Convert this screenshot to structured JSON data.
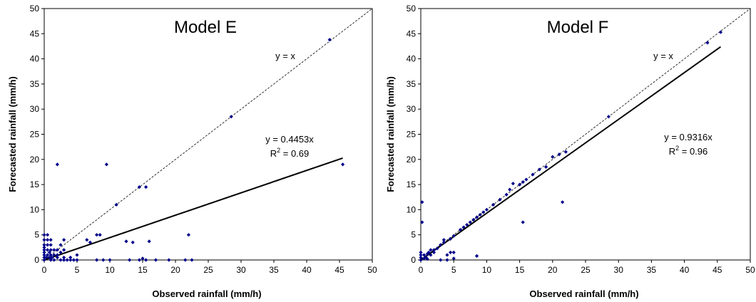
{
  "chart_data": [
    {
      "type": "scatter",
      "title": "Model E",
      "xlabel": "Observed rainfall (mm/h)",
      "ylabel": "Forecasted rainfall (mm/h)",
      "xlim": [
        0,
        50
      ],
      "ylim": [
        0,
        50
      ],
      "xticks": [
        0,
        5,
        10,
        15,
        20,
        25,
        30,
        35,
        40,
        45,
        50
      ],
      "yticks": [
        0,
        5,
        10,
        15,
        20,
        25,
        30,
        35,
        40,
        45,
        50
      ],
      "grid": false,
      "reference_line_label": "y = x",
      "fit_equation": "y = 0.4453x",
      "fit_r2_label": "R",
      "fit_r2_sup": "2",
      "fit_r2_value": " = 0.69",
      "fit_slope": 0.4453,
      "marker_color": "#00008b",
      "points": [
        [
          0,
          0
        ],
        [
          0,
          0.5
        ],
        [
          0,
          1
        ],
        [
          0,
          1.5
        ],
        [
          0,
          2
        ],
        [
          0,
          2.5
        ],
        [
          0,
          3
        ],
        [
          0,
          4
        ],
        [
          0,
          5
        ],
        [
          0.3,
          0.5
        ],
        [
          0.5,
          1
        ],
        [
          0.5,
          2
        ],
        [
          0.5,
          3
        ],
        [
          0.5,
          4
        ],
        [
          0.5,
          5
        ],
        [
          0.8,
          0.5
        ],
        [
          0.8,
          1.5
        ],
        [
          1,
          0
        ],
        [
          1,
          1
        ],
        [
          1,
          2
        ],
        [
          1,
          3
        ],
        [
          1,
          4
        ],
        [
          1.2,
          0.5
        ],
        [
          1.5,
          1
        ],
        [
          1.5,
          2
        ],
        [
          1.5,
          0
        ],
        [
          2,
          0.5
        ],
        [
          2,
          1
        ],
        [
          2,
          2
        ],
        [
          2,
          19
        ],
        [
          2.5,
          0
        ],
        [
          2.5,
          1.5
        ],
        [
          2.5,
          3
        ],
        [
          3,
          0
        ],
        [
          3,
          0.5
        ],
        [
          3,
          2
        ],
        [
          3,
          4
        ],
        [
          3.5,
          0
        ],
        [
          4,
          0
        ],
        [
          4,
          0.5
        ],
        [
          4.5,
          0
        ],
        [
          5,
          0
        ],
        [
          5,
          1
        ],
        [
          6.5,
          4
        ],
        [
          7,
          3.5
        ],
        [
          8,
          5
        ],
        [
          8.5,
          5
        ],
        [
          8,
          0
        ],
        [
          9,
          0
        ],
        [
          9.5,
          19
        ],
        [
          10,
          0
        ],
        [
          11,
          11
        ],
        [
          12.5,
          3.7
        ],
        [
          13,
          0
        ],
        [
          13.5,
          3.5
        ],
        [
          14.5,
          14.5
        ],
        [
          14.5,
          0
        ],
        [
          15,
          0.3
        ],
        [
          15.5,
          14.5
        ],
        [
          15.5,
          0
        ],
        [
          16,
          3.7
        ],
        [
          17,
          0
        ],
        [
          19,
          0
        ],
        [
          21.5,
          0
        ],
        [
          22,
          5
        ],
        [
          22.5,
          0
        ],
        [
          28.5,
          28.5
        ],
        [
          43.5,
          43.8
        ],
        [
          45.5,
          19
        ]
      ]
    },
    {
      "type": "scatter",
      "title": "Model F",
      "xlabel": "Observed rainfall (mm/h)",
      "ylabel": "Forecasted rainfall (mm/h)",
      "xlim": [
        0,
        50
      ],
      "ylim": [
        0,
        50
      ],
      "xticks": [
        0,
        5,
        10,
        15,
        20,
        25,
        30,
        35,
        40,
        45,
        50
      ],
      "yticks": [
        0,
        5,
        10,
        15,
        20,
        25,
        30,
        35,
        40,
        45,
        50
      ],
      "grid": false,
      "reference_line_label": "y = x",
      "fit_equation": "y = 0.9316x",
      "fit_r2_label": "R",
      "fit_r2_sup": "2",
      "fit_r2_value": " = 0.96",
      "fit_slope": 0.9316,
      "marker_color": "#00008b",
      "points": [
        [
          0,
          0
        ],
        [
          0,
          0.5
        ],
        [
          0,
          1
        ],
        [
          0,
          1.5
        ],
        [
          0.2,
          7.5
        ],
        [
          0.2,
          11.5
        ],
        [
          0.5,
          0.3
        ],
        [
          0.5,
          1
        ],
        [
          0.8,
          0.5
        ],
        [
          1,
          1.2
        ],
        [
          1,
          0.2
        ],
        [
          1.2,
          1.5
        ],
        [
          1.5,
          1
        ],
        [
          1.5,
          2
        ],
        [
          2,
          1.5
        ],
        [
          2,
          2
        ],
        [
          2.5,
          2.3
        ],
        [
          3,
          0
        ],
        [
          3,
          3
        ],
        [
          3.5,
          3.5
        ],
        [
          3.5,
          4
        ],
        [
          4,
          1
        ],
        [
          4,
          0
        ],
        [
          4.5,
          4.2
        ],
        [
          4.5,
          1.5
        ],
        [
          5,
          4.8
        ],
        [
          5,
          1.5
        ],
        [
          5,
          0.3
        ],
        [
          6,
          6
        ],
        [
          6.5,
          6.5
        ],
        [
          7,
          7
        ],
        [
          7.5,
          7.5
        ],
        [
          8,
          8
        ],
        [
          8.5,
          8.5
        ],
        [
          8.5,
          0.8
        ],
        [
          9,
          9
        ],
        [
          9.5,
          9.5
        ],
        [
          10,
          10
        ],
        [
          11,
          11
        ],
        [
          12,
          12
        ],
        [
          13,
          13
        ],
        [
          13.5,
          14
        ],
        [
          14,
          15.2
        ],
        [
          15,
          15
        ],
        [
          15.5,
          15.5
        ],
        [
          15.5,
          7.5
        ],
        [
          16,
          16
        ],
        [
          17,
          17
        ],
        [
          18,
          18
        ],
        [
          19,
          18.5
        ],
        [
          20,
          20.5
        ],
        [
          21,
          21
        ],
        [
          21.5,
          11.5
        ],
        [
          22,
          21.5
        ],
        [
          28.5,
          28.5
        ],
        [
          43.5,
          43.2
        ],
        [
          45.5,
          45.3
        ]
      ]
    }
  ]
}
